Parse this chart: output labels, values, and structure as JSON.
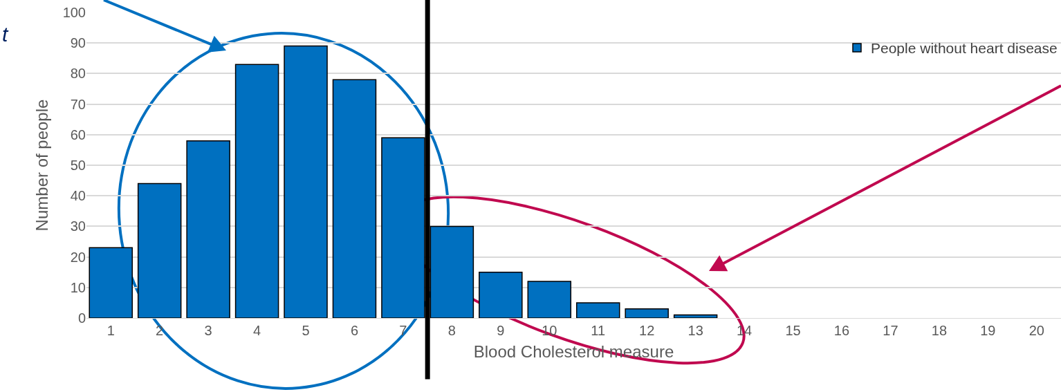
{
  "chart_data": {
    "type": "bar",
    "xlabel": "Blood Cholesterol measure",
    "ylabel": "Number of people",
    "x": [
      1,
      2,
      3,
      4,
      5,
      6,
      7,
      8,
      9,
      10,
      11,
      12,
      13,
      14,
      15,
      16,
      17,
      18,
      19,
      20
    ],
    "series": [
      {
        "name": "People without heart disease",
        "color": "#0070c0",
        "values": [
          23,
          44,
          58,
          83,
          89,
          78,
          59,
          30,
          15,
          12,
          5,
          3,
          1,
          0,
          0,
          0,
          0,
          0,
          0,
          0
        ]
      }
    ],
    "xlim": [
      0.5,
      20.5
    ],
    "xticks": [
      1,
      2,
      3,
      4,
      5,
      6,
      7,
      8,
      9,
      10,
      11,
      12,
      13,
      14,
      15,
      16,
      17,
      18,
      19,
      20
    ],
    "ylim": [
      0,
      100
    ],
    "yticks": [
      0,
      10,
      20,
      30,
      40,
      50,
      60,
      70,
      80,
      90,
      100
    ],
    "ref_lines": [
      {
        "axis": "x",
        "value": 7.5,
        "color": "#000000"
      }
    ],
    "annotations": [
      "t"
    ],
    "grid": "y",
    "legend": "top right"
  }
}
